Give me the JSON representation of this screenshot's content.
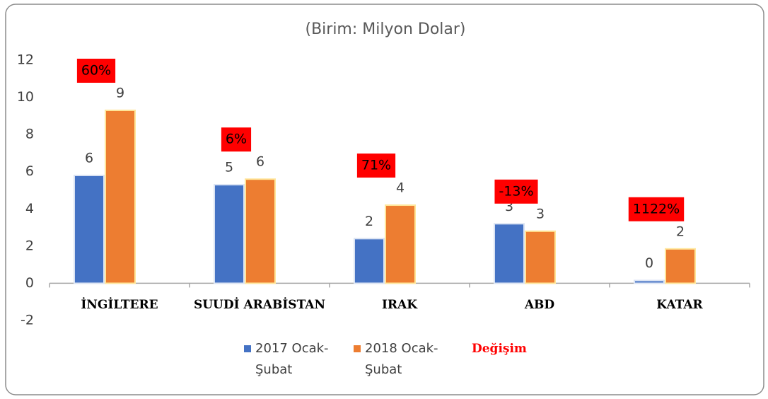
{
  "chart_data": {
    "type": "bar",
    "title": "(Birim: Milyon Dolar)",
    "categories": [
      "İNGİLTERE",
      "SUUDİ ARABİSTAN",
      "IRAK",
      "ABD",
      "KATAR"
    ],
    "series": [
      {
        "name": "2017 Ocak-Şubat",
        "color": "#4472c4",
        "values": [
          5.8,
          5.3,
          2.4,
          3.2,
          0.15
        ],
        "value_labels": [
          "6",
          "5",
          "2",
          "3",
          "0"
        ]
      },
      {
        "name": "2018 Ocak-Şubat",
        "color": "#ed7d31",
        "values": [
          9.3,
          5.6,
          4.2,
          2.8,
          1.85
        ],
        "value_labels": [
          "9",
          "6",
          "4",
          "3",
          "2"
        ]
      }
    ],
    "change": {
      "name": "Değişim",
      "color": "#ff0000",
      "labels": [
        "60%",
        "6%",
        "71%",
        "-13%",
        "1122%"
      ]
    },
    "ylim": [
      -2,
      12
    ],
    "yticks": [
      -2,
      0,
      2,
      4,
      6,
      8,
      10,
      12
    ],
    "grid": false
  }
}
